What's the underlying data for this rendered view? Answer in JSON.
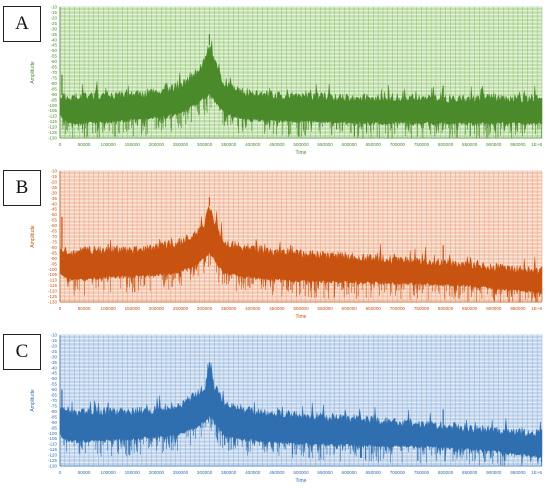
{
  "panels": [
    {
      "label": "A",
      "color": "#4a8a2a",
      "grid": "#8dc46a",
      "bg": "#f7fbf3",
      "axis": "#4a8a2a"
    },
    {
      "label": "B",
      "color": "#c8520f",
      "grid": "#ec9f78",
      "bg": "#fdf6f1",
      "axis": "#c8520f"
    },
    {
      "label": "C",
      "color": "#2f6fb0",
      "grid": "#8fb2db",
      "bg": "#f3f7fc",
      "axis": "#2f6fb0"
    }
  ],
  "chart_data": [
    {
      "type": "area",
      "xlabel": "Time",
      "ylabel": "Amplitude",
      "xlim": [
        0,
        1000000
      ],
      "ylim": [
        -130,
        -10
      ],
      "x_ticks": [
        "0",
        "50000",
        "100000",
        "150000",
        "200000",
        "250000",
        "300000",
        "350000",
        "400000",
        "450000",
        "500000",
        "550000",
        "600000",
        "650000",
        "700000",
        "750000",
        "800000",
        "850000",
        "900000",
        "950000",
        "1E+6"
      ],
      "y_ticks": [
        "-10",
        "-15",
        "-20",
        "-25",
        "-30",
        "-35",
        "-40",
        "-45",
        "-50",
        "-55",
        "-60",
        "-65",
        "-70",
        "-75",
        "-80",
        "-85",
        "-90",
        "-95",
        "-100",
        "-105",
        "-110",
        "-115",
        "-120",
        "-125",
        "-130"
      ],
      "grid": true,
      "envelope": {
        "x": [
          0,
          20000,
          50000,
          100000,
          150000,
          200000,
          250000,
          280000,
          300000,
          310000,
          320000,
          340000,
          380000,
          450000,
          550000,
          650000,
          750000,
          800000,
          850000,
          900000,
          950000,
          1000000
        ],
        "upper": [
          -90,
          -93,
          -92,
          -91,
          -90,
          -88,
          -82,
          -72,
          -58,
          -45,
          -60,
          -80,
          -88,
          -91,
          -92,
          -93,
          -93,
          -94,
          -94,
          -93,
          -94,
          -94
        ],
        "lower": [
          -108,
          -115,
          -115,
          -114,
          -112,
          -110,
          -106,
          -98,
          -92,
          -88,
          -94,
          -105,
          -112,
          -113,
          -114,
          -115,
          -115,
          -115,
          -115,
          -115,
          -115,
          -115
        ]
      },
      "spikes": [
        [
          4000,
          -72
        ],
        [
          310000,
          -35
        ],
        [
          795000,
          -82
        ]
      ]
    },
    {
      "type": "area",
      "xlabel": "Time",
      "ylabel": "Amplitude",
      "xlim": [
        0,
        1000000
      ],
      "ylim": [
        -130,
        -10
      ],
      "x_ticks": [
        "0",
        "50000",
        "100000",
        "150000",
        "200000",
        "250000",
        "300000",
        "350000",
        "400000",
        "450000",
        "500000",
        "550000",
        "600000",
        "650000",
        "700000",
        "750000",
        "800000",
        "850000",
        "900000",
        "950000",
        "1E+6"
      ],
      "y_ticks": [
        "-10",
        "-15",
        "-20",
        "-25",
        "-30",
        "-35",
        "-40",
        "-45",
        "-50",
        "-55",
        "-60",
        "-65",
        "-70",
        "-75",
        "-80",
        "-85",
        "-90",
        "-95",
        "-100",
        "-105",
        "-110",
        "-115",
        "-120",
        "-125",
        "-130"
      ],
      "grid": true,
      "envelope": {
        "x": [
          0,
          20000,
          50000,
          100000,
          150000,
          200000,
          250000,
          280000,
          300000,
          310000,
          320000,
          340000,
          380000,
          450000,
          550000,
          650000,
          750000,
          850000,
          900000,
          950000,
          1000000
        ],
        "upper": [
          -80,
          -85,
          -83,
          -82,
          -82,
          -80,
          -75,
          -68,
          -58,
          -42,
          -56,
          -75,
          -80,
          -84,
          -87,
          -90,
          -93,
          -96,
          -98,
          -100,
          -101
        ],
        "lower": [
          -102,
          -108,
          -108,
          -106,
          -105,
          -104,
          -101,
          -95,
          -88,
          -84,
          -90,
          -102,
          -106,
          -108,
          -110,
          -111,
          -112,
          -114,
          -116,
          -118,
          -120
        ]
      },
      "spikes": [
        [
          4000,
          -52
        ],
        [
          100000,
          -77
        ],
        [
          310000,
          -34
        ],
        [
          795000,
          -78
        ]
      ]
    },
    {
      "type": "area",
      "xlabel": "Time",
      "ylabel": "Amplitude",
      "xlim": [
        0,
        1000000
      ],
      "ylim": [
        -130,
        -10
      ],
      "x_ticks": [
        "0",
        "50000",
        "100000",
        "150000",
        "200000",
        "250000",
        "300000",
        "350000",
        "400000",
        "450000",
        "500000",
        "550000",
        "600000",
        "650000",
        "700000",
        "750000",
        "800000",
        "850000",
        "900000",
        "950000",
        "1E+6"
      ],
      "y_ticks": [
        "-10",
        "-15",
        "-20",
        "-25",
        "-30",
        "-35",
        "-40",
        "-45",
        "-50",
        "-55",
        "-60",
        "-65",
        "-70",
        "-75",
        "-80",
        "-85",
        "-90",
        "-95",
        "-100",
        "-105",
        "-110",
        "-115",
        "-120",
        "-125",
        "-130"
      ],
      "grid": true,
      "envelope": {
        "x": [
          0,
          20000,
          50000,
          100000,
          150000,
          200000,
          250000,
          280000,
          300000,
          310000,
          320000,
          340000,
          380000,
          450000,
          550000,
          650000,
          750000,
          850000,
          900000,
          950000,
          1000000
        ],
        "upper": [
          -78,
          -82,
          -80,
          -80,
          -80,
          -78,
          -74,
          -66,
          -58,
          -42,
          -56,
          -72,
          -78,
          -82,
          -85,
          -88,
          -91,
          -95,
          -97,
          -99,
          -100
        ],
        "lower": [
          -100,
          -106,
          -106,
          -105,
          -104,
          -102,
          -99,
          -94,
          -88,
          -82,
          -88,
          -100,
          -104,
          -107,
          -109,
          -110,
          -111,
          -113,
          -115,
          -118,
          -120
        ]
      },
      "spikes": [
        [
          4000,
          -60
        ],
        [
          100000,
          -72
        ],
        [
          310000,
          -35
        ],
        [
          795000,
          -78
        ]
      ]
    }
  ]
}
